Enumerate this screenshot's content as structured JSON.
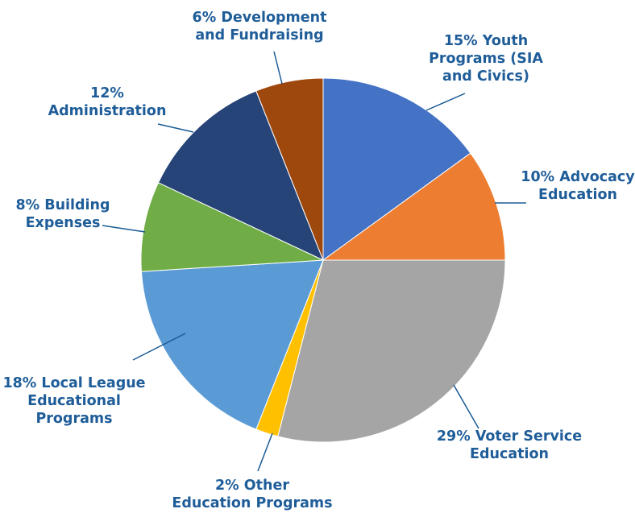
{
  "chart_data": {
    "type": "pie",
    "title": "",
    "slices": [
      {
        "label": "15% Youth Programs (SIA and Civics)",
        "value": 15,
        "color": "#4472c4"
      },
      {
        "label": "10% Advocacy Education",
        "value": 10,
        "color": "#ed7d31"
      },
      {
        "label": "29% Voter Service Education",
        "value": 29,
        "color": "#a5a5a5"
      },
      {
        "label": "2% Other Education Programs",
        "value": 2,
        "color": "#ffc000"
      },
      {
        "label": "18% Local League Educational Programs",
        "value": 18,
        "color": "#5b9bd5"
      },
      {
        "label": "8% Building Expenses",
        "value": 8,
        "color": "#70ad47"
      },
      {
        "label": "12% Administration",
        "value": 12,
        "color": "#264478"
      },
      {
        "label": "6% Development and Fundraising",
        "value": 6,
        "color": "#9e480e"
      }
    ],
    "label_lines": [
      [
        "15% Youth",
        "Programs (SIA",
        "and Civics)"
      ],
      [
        "10% Advocacy",
        "Education"
      ],
      [
        "29% Voter Service",
        "Education"
      ],
      [
        "2% Other",
        "Education Programs"
      ],
      [
        "18% Local League",
        "Educational",
        "Programs"
      ],
      [
        "8% Building",
        "Expenses"
      ],
      [
        "12%",
        "Administration"
      ],
      [
        "6% Development",
        "and Fundraising"
      ]
    ],
    "start_angle": "12 o'clock",
    "direction": "clockwise",
    "legend": "none",
    "data_labels": "outside with leader lines"
  }
}
